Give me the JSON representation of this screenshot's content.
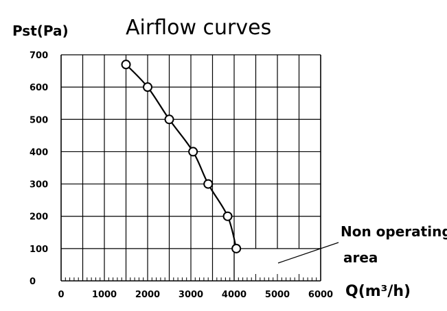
{
  "chart_data": {
    "type": "line",
    "title": "Airflow curves",
    "ylabel": "Pst(Pa)",
    "xlabel": "Q(m³/h)",
    "xlim": [
      0,
      6000
    ],
    "ylim": [
      0,
      700
    ],
    "xticks": [
      0,
      1000,
      2000,
      3000,
      4000,
      5000,
      6000
    ],
    "yticks": [
      0,
      100,
      200,
      300,
      400,
      500,
      600,
      700
    ],
    "grid": true,
    "series": [
      {
        "x": [
          1500,
          2000,
          2500,
          3050,
          3400,
          3850,
          4050
        ],
        "y": [
          670,
          600,
          500,
          400,
          300,
          200,
          100
        ]
      }
    ],
    "annotation": {
      "line1": "Non operating",
      "line2": "area",
      "region_q_min": 4000,
      "region_pst_max": 100
    }
  }
}
